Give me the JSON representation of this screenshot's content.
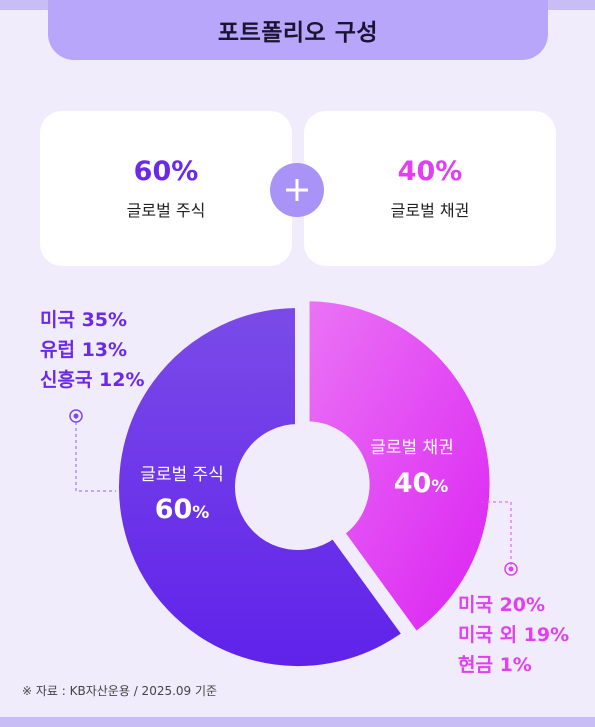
{
  "title": "포트폴리오 구성",
  "cards": {
    "equity": {
      "percent": "60%",
      "label": "글로벌 주식"
    },
    "bonds": {
      "percent": "40%",
      "label": "글로벌 채권"
    }
  },
  "equity_breakdown": [
    "미국 35%",
    "유럽 13%",
    "신흥국 12%"
  ],
  "bond_breakdown": [
    "미국 20%",
    "미국 외 19%",
    "현금 1%"
  ],
  "colors": {
    "equity": "#6a2ae6",
    "bonds": "#e040f0",
    "background": "#f0ecfb",
    "title_bar": "#b8a6fb"
  },
  "chart_data": {
    "type": "pie",
    "categories": [
      "글로벌 주식",
      "글로벌 채권"
    ],
    "values": [
      60,
      40
    ],
    "slice_labels": [
      {
        "name": "글로벌 주식",
        "value": "60",
        "unit": "%"
      },
      {
        "name": "글로벌 채권",
        "value": "40",
        "unit": "%"
      }
    ]
  },
  "footnote": "※ 자료 : KB자산운용 / 2025.09 기준"
}
